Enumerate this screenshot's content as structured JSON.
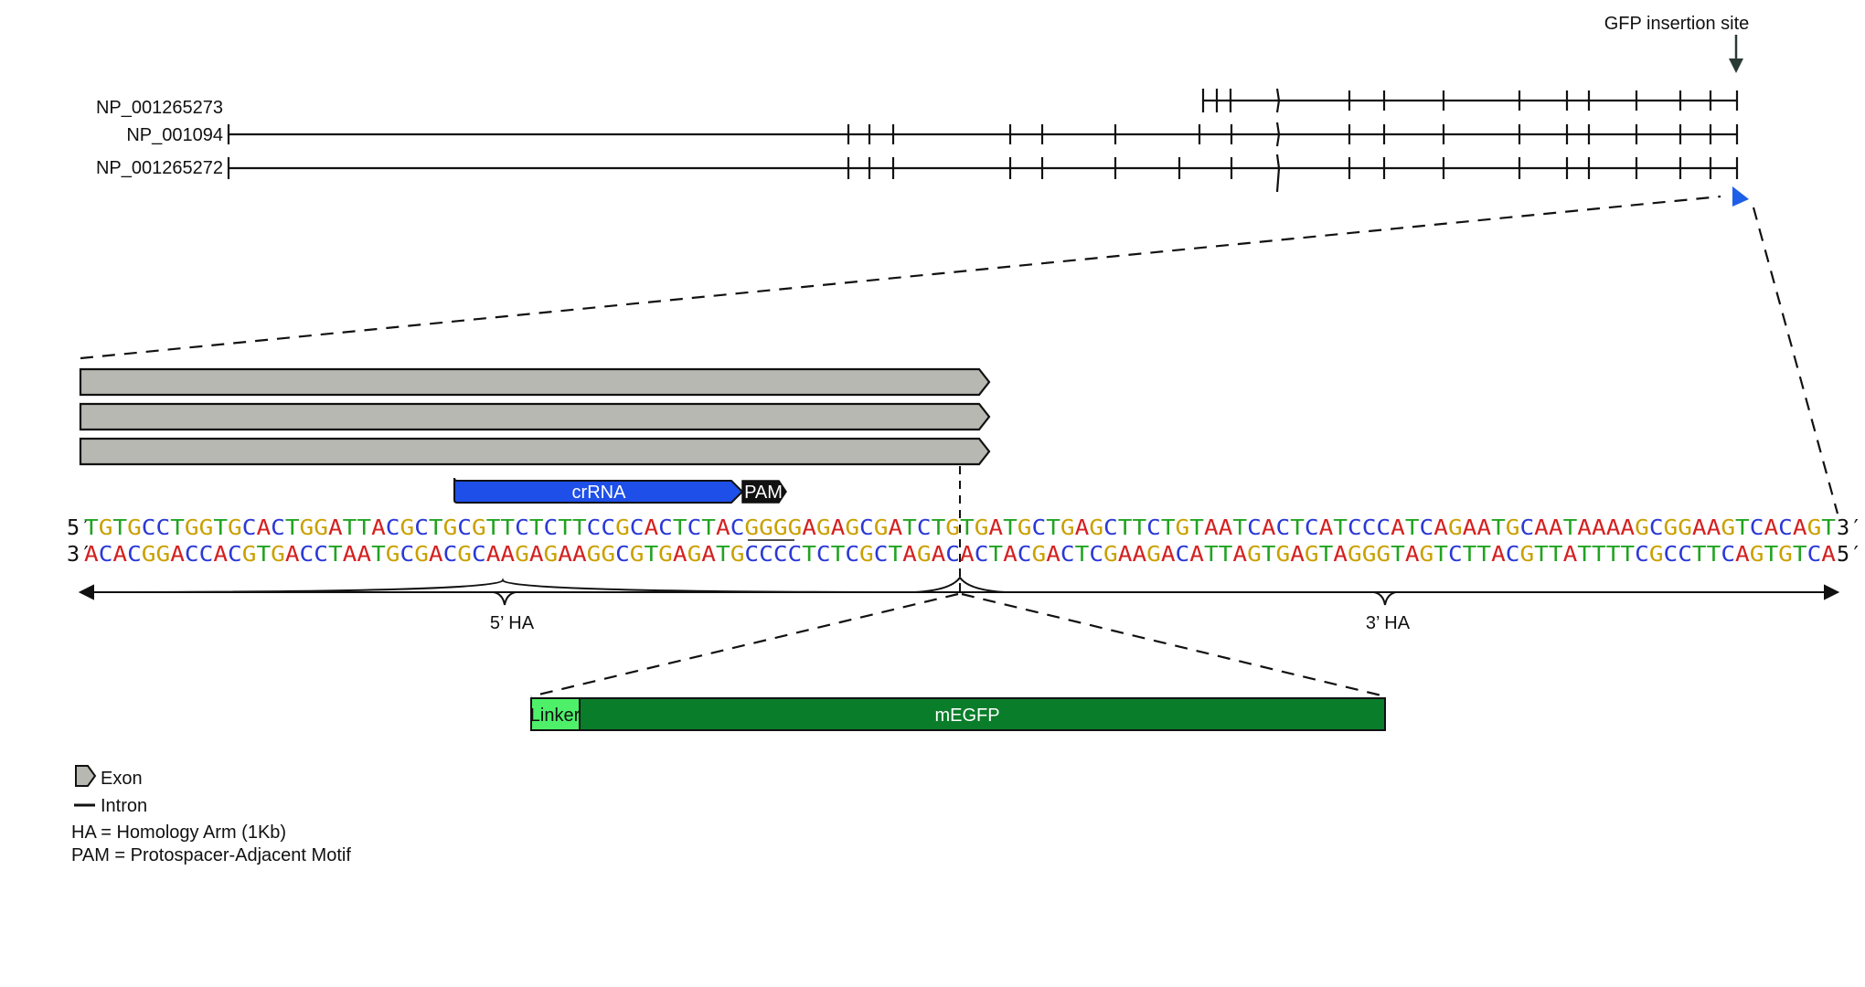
{
  "gene_model": {
    "insertion_label": "GFP insertion site",
    "transcripts": [
      {
        "id": "NP_001265273"
      },
      {
        "id": "NP_001094"
      },
      {
        "id": "NP_001265272"
      }
    ]
  },
  "features": {
    "crRNA_label": "crRNA",
    "pam_label": "PAM",
    "linker_label": "Linker",
    "megfp_label": "mEGFP"
  },
  "sequence": {
    "top_prefix": "5′",
    "top_suffix": "3′",
    "bottom_prefix": "3′",
    "bottom_suffix": "5′",
    "top": "TGTGCCTGGTGCACTGGATTACGCTGCGTTCTCTTCCGCACTCTACGGGGAGAGCGATCTGTGATGCTGAGCTTCTGTAATCACTCATCCCATCAGAATGCAATAAAAGCGGAAGTCACAGT",
    "bottom": "ACACGGACCACGTGACCTAATGCGACGCAAGAGAAGGCGTGAGATGCCCCTCTCGCTAGACACTACGACTCGAAGACATTAGTGAGTAGGGTAGTCTTACGTTATTTTCGCCTTCAGTGTCA",
    "base_colors": {
      "A": "#d42020",
      "T": "#21a321",
      "G": "#c9a000",
      "C": "#2a38d6"
    }
  },
  "homology_arms": {
    "left_label": "5’ HA",
    "right_label": "3’ HA"
  },
  "legend": {
    "exon": "Exon",
    "intron": "Intron",
    "ha_def": "HA = Homology Arm (1Kb)",
    "pam_def": "PAM = Protospacer-Adjacent Motif"
  },
  "colors": {
    "exon_gray": "#b8b8b2",
    "crRNA_blue": "#1e4fe8",
    "linker_green": "#4ef06a",
    "megfp_green": "#0a7d2a",
    "arrow_blue": "#1e5fe8",
    "insertion_arrow": "#2a3a34"
  }
}
